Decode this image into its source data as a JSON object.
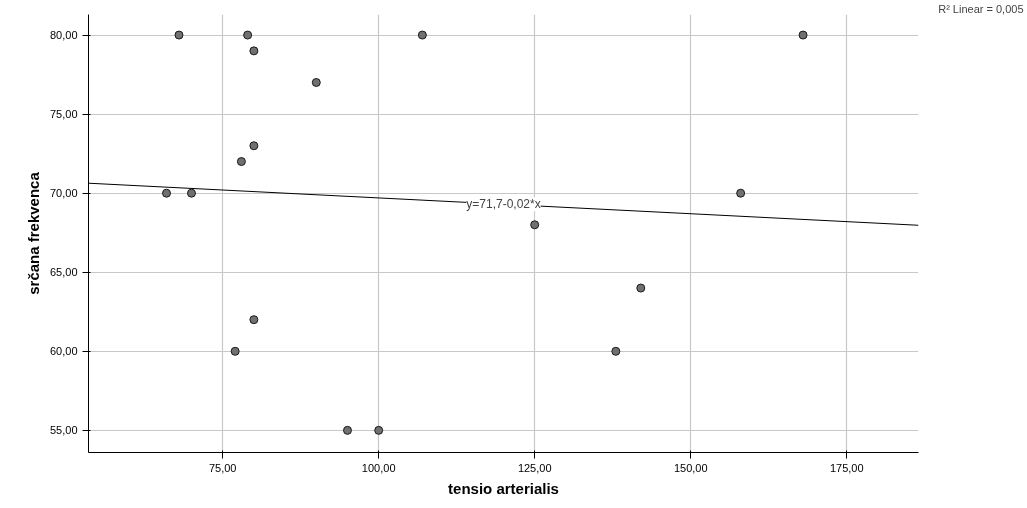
{
  "chart_data": {
    "type": "scatter",
    "xlabel": "tensio arterialis",
    "ylabel": "srčana frekvenca",
    "xlim": [
      53.5,
      186.5
    ],
    "ylim": [
      53.6,
      81.3
    ],
    "xticks": [
      {
        "value": 75,
        "label": "75,00"
      },
      {
        "value": 100,
        "label": "100,00"
      },
      {
        "value": 125,
        "label": "125,00"
      },
      {
        "value": 150,
        "label": "150,00"
      },
      {
        "value": 175,
        "label": "175,00"
      }
    ],
    "yticks": [
      {
        "value": 55,
        "label": "55,00"
      },
      {
        "value": 60,
        "label": "60,00"
      },
      {
        "value": 65,
        "label": "65,00"
      },
      {
        "value": 70,
        "label": "70,00"
      },
      {
        "value": 75,
        "label": "75,00"
      },
      {
        "value": 80,
        "label": "80,00"
      }
    ],
    "grid": true,
    "series": [
      {
        "color": "#707070",
        "marker": "circle",
        "x": [
          68,
          79,
          80,
          90,
          107,
          168,
          78,
          80,
          66,
          70,
          158,
          125,
          142,
          80,
          77,
          138,
          95,
          100
        ],
        "values": [
          80,
          80,
          79,
          77,
          80,
          80,
          72,
          73,
          70,
          70,
          70,
          68,
          64,
          62,
          60,
          60,
          55,
          55
        ]
      },
      {
        "type": "line",
        "color": "#000000",
        "x": [
          53.5,
          186.5
        ],
        "values": [
          70.63,
          67.97
        ]
      }
    ],
    "annotations": [
      {
        "text": "y=71,7-0,02*x",
        "x": 120,
        "y": 69.3
      },
      "R² Linear = 0,005"
    ]
  }
}
